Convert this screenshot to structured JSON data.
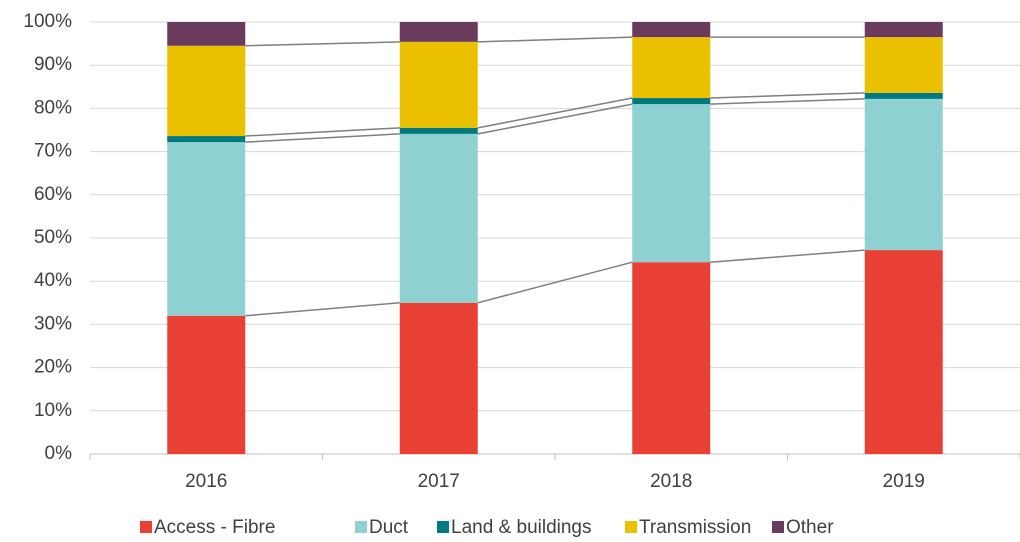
{
  "chart_data": {
    "type": "stacked_bar",
    "categories": [
      "2016",
      "2017",
      "2018",
      "2019"
    ],
    "series": [
      {
        "name": "Access - Fibre",
        "color": "#e84034",
        "values": [
          32,
          35,
          44.4,
          47.2
        ]
      },
      {
        "name": "Duct",
        "color": "#8fd1d1",
        "values": [
          40.2,
          39.1,
          36.6,
          35
        ]
      },
      {
        "name": "Land & buildings",
        "color": "#007a80",
        "values": [
          1.4,
          1.4,
          1.4,
          1.4
        ]
      },
      {
        "name": "Transmission",
        "color": "#ebc000",
        "values": [
          20.9,
          19.9,
          14.1,
          12.9
        ]
      },
      {
        "name": "Other",
        "color": "#6b3b5e",
        "values": [
          5.5,
          4.6,
          3.5,
          3.5
        ]
      }
    ],
    "ylim": [
      0,
      100
    ],
    "yticks": [
      {
        "value": 0,
        "label": "0%"
      },
      {
        "value": 10,
        "label": "10%"
      },
      {
        "value": 20,
        "label": "20%"
      },
      {
        "value": 30,
        "label": "30%"
      },
      {
        "value": 40,
        "label": "40%"
      },
      {
        "value": 50,
        "label": "50%"
      },
      {
        "value": 60,
        "label": "60%"
      },
      {
        "value": 70,
        "label": "70%"
      },
      {
        "value": 80,
        "label": "80%"
      },
      {
        "value": 90,
        "label": "90%"
      },
      {
        "value": 100,
        "label": "100%"
      }
    ],
    "grid": true,
    "legend": "bottom"
  }
}
